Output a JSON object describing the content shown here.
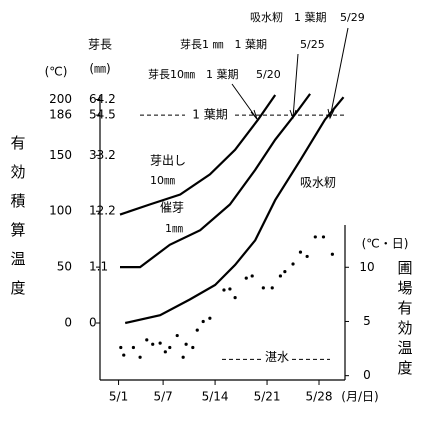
{
  "chart_data": {
    "type": "line",
    "y_label": "有効積算温度",
    "y_unit": "(℃)",
    "length_label": "芽長",
    "length_unit": "(㎜)",
    "y2_label": "圃場有効温度",
    "y2_unit": "(℃・日)",
    "x_unit": "(月/日)",
    "xlim": [
      -1.5,
      31.5
    ],
    "xticks": [
      {
        "value": 1,
        "label": "5/1"
      },
      {
        "value": 7,
        "label": "5/7"
      },
      {
        "value": 14,
        "label": "5/14"
      },
      {
        "value": 21,
        "label": "5/21"
      },
      {
        "value": 28,
        "label": "5/28"
      }
    ],
    "ylim": [
      -51,
      204
    ],
    "yticks": [
      0,
      50,
      100,
      150,
      186,
      200
    ],
    "length_ticks": [
      0,
      1.1,
      12.2,
      33.2,
      54.5,
      64.2
    ],
    "y2lim": [
      -0.4,
      13.9
    ],
    "y2ticks": [
      0,
      5,
      10
    ],
    "series": [
      {
        "name": "吸水籾",
        "color": "#000000",
        "x": [
          1.9,
          6.6,
          10.6,
          14.0,
          16.7,
          19.4,
          22.1,
          25.5,
          28.8,
          31.3
        ],
        "values": [
          0,
          7,
          21,
          34,
          52,
          74,
          110,
          146,
          182,
          202
        ]
      },
      {
        "name": "催芽 1㎜",
        "color": "#000000",
        "x": [
          1.2,
          3.9,
          7.9,
          12.0,
          16.0,
          19.4,
          22.1,
          24.8,
          26.8
        ],
        "values": [
          50,
          50,
          70,
          83,
          106,
          137,
          164,
          187,
          205
        ]
      },
      {
        "name": "芽出し 10㎜",
        "color": "#000000",
        "x": [
          1.2,
          5.2,
          9.3,
          13.3,
          16.7,
          19.8,
          22.1
        ],
        "values": [
          97,
          106,
          115,
          133,
          155,
          182,
          204
        ]
      }
    ],
    "field_temperature": {
      "axis": "y2",
      "color": "#000000",
      "x": [
        1.3,
        1.7,
        3.0,
        3.9,
        4.8,
        5.6,
        6.6,
        7.3,
        7.9,
        8.9,
        9.7,
        10.1,
        11.0,
        11.6,
        12.4,
        13.3,
        15.2,
        16.0,
        16.7,
        18.2,
        19.0,
        20.5,
        21.7,
        22.8,
        23.4,
        24.5,
        25.5,
        26.4,
        27.5,
        28.6,
        29.8
      ],
      "values": [
        2.6,
        1.9,
        2.6,
        1.7,
        3.3,
        2.9,
        3.0,
        2.2,
        2.6,
        3.7,
        1.7,
        2.9,
        2.6,
        4.2,
        5.0,
        5.3,
        7.9,
        8.0,
        7.2,
        9.0,
        9.2,
        8.1,
        8.1,
        9.2,
        9.6,
        10.3,
        11.4,
        11.0,
        12.8,
        12.8,
        11.2
      ]
    },
    "reference_line": {
      "value": 186,
      "label": "1 葉期"
    },
    "flood_line": {
      "value": 1.5,
      "label": "湛水"
    },
    "annotations": [
      {
        "text": "芽長10㎜　1 葉期",
        "date": "5/20"
      },
      {
        "text": "芽長1 ㎜　1 葉期",
        "date": "5/25"
      },
      {
        "text": "吸水籾　1 葉期",
        "date": "5/29"
      }
    ],
    "series_labels": [
      [
        "芽出し",
        "10㎜"
      ],
      [
        "催芽",
        "1㎜"
      ],
      [
        "吸水籾"
      ]
    ]
  }
}
